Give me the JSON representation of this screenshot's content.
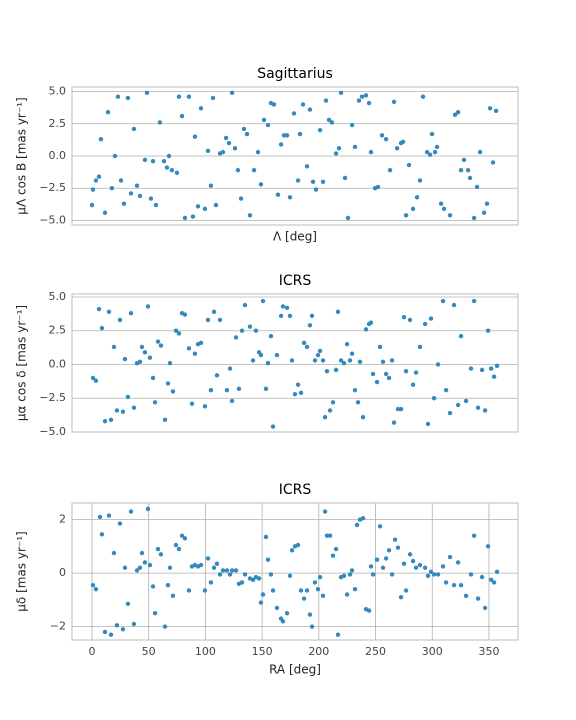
{
  "chart_data": [
    {
      "type": "scatter",
      "title": "Sagittarius",
      "xlabel": "Λ [deg]",
      "ylabel": "μΛ cos B [mas yr⁻¹]",
      "color": "#348abd",
      "grid": true,
      "xlim": [
        -17.6,
        375.6
      ],
      "ylim": [
        -5.35,
        5.35
      ],
      "yticks": [
        {
          "value": -5,
          "label": "−5.0"
        },
        {
          "value": -2.5,
          "label": "−2.5"
        },
        {
          "value": 0,
          "label": "0.0"
        },
        {
          "value": 2.5,
          "label": "2.5"
        },
        {
          "value": 5,
          "label": "5.0"
        }
      ],
      "x": [
        0,
        0.9,
        3.5,
        6.2,
        7.9,
        11.5,
        14.1,
        17.6,
        20.3,
        22.9,
        25.6,
        28.2,
        31.7,
        34.4,
        37,
        39.7,
        42.3,
        46.7,
        48.5,
        52,
        53.8,
        56.4,
        59.9,
        63.5,
        66.1,
        67.9,
        70.5,
        74.9,
        76.7,
        79.4,
        82,
        85.5,
        89,
        90.8,
        93.5,
        96.1,
        99.6,
        102.3,
        104.9,
        106.7,
        109.3,
        112.9,
        115.5,
        118.2,
        120.8,
        123.5,
        126.1,
        128.7,
        131.4,
        134,
        136.7,
        139.3,
        142.9,
        146.4,
        149,
        151.7,
        155.2,
        157.8,
        160.5,
        164,
        166.7,
        169.3,
        172,
        174.6,
        178.1,
        181.7,
        183.4,
        186.1,
        189.6,
        192.2,
        194.9,
        197.5,
        201.1,
        203.7,
        206.3,
        209,
        211.6,
        215.2,
        217.8,
        219.6,
        223.1,
        225.7,
        229.3,
        231.9,
        235.4,
        238.1,
        241.6,
        244.3,
        246,
        249.6,
        252.2,
        255.7,
        259.3,
        262.8,
        266.3,
        269,
        272.5,
        274.3,
        276.9,
        279.5,
        283.1,
        286.6,
        289.2,
        291.9,
        295.4,
        298.1,
        299.8,
        302.5,
        304.2,
        307.8,
        310.4,
        315.7,
        320.1,
        322.8,
        325.4,
        328,
        331.6,
        333.3,
        336.9,
        339.5,
        342.2,
        345.7,
        348.3,
        351,
        353.6,
        356.3
      ],
      "y": [
        -3.8,
        -2.6,
        -1.9,
        -1.6,
        1.3,
        -4.4,
        3.4,
        -2.5,
        0,
        4.6,
        -1.9,
        -3.7,
        4.5,
        -2.9,
        2.1,
        -2.3,
        -3.1,
        -0.3,
        4.9,
        -3.3,
        -0.4,
        -3.8,
        2.6,
        -0.4,
        -0.9,
        0,
        -1.1,
        -1.3,
        4.6,
        3.1,
        -4.8,
        4.6,
        -4.7,
        1.5,
        -3.9,
        3.7,
        -4.1,
        0.4,
        -2.3,
        4.5,
        -3.8,
        0.2,
        0.3,
        1.4,
        1.0,
        4.9,
        0.6,
        -1.1,
        -3.3,
        2.1,
        1.7,
        -4.6,
        -1.1,
        0.3,
        -2.2,
        2.8,
        2.4,
        4.1,
        4.0,
        -3.0,
        0.9,
        1.6,
        1.6,
        -3.2,
        3.3,
        -1.9,
        1.7,
        4.0,
        -0.8,
        3.6,
        -2.0,
        -2.6,
        2.0,
        -2.0,
        4.3,
        2.8,
        2.6,
        0.2,
        0.6,
        4.9,
        -1.7,
        -4.8,
        2.4,
        0.7,
        4.3,
        4.6,
        4.7,
        4.1,
        0.3,
        -2.5,
        -2.4,
        1.6,
        1.3,
        -1.1,
        4.2,
        0.6,
        1.0,
        1.1,
        -4.6,
        -0.7,
        -4.1,
        -3.2,
        -1.9,
        4.6,
        0.3,
        0.1,
        1.7,
        0.3,
        0.7,
        -3.7,
        -4.1,
        -4.6,
        3.2,
        3.4,
        -1.1,
        -0.3,
        -1.1,
        -1.7,
        -4.8,
        -2.4,
        0.3,
        -4.4,
        -3.7,
        3.7,
        -0.5,
        3.5
      ]
    },
    {
      "type": "scatter",
      "title": "ICRS",
      "ylabel": "μα cos δ [mas yr⁻¹]",
      "color": "#348abd",
      "grid": true,
      "xlim": [
        -17.6,
        375.6
      ],
      "ylim": [
        -5.0,
        5.22
      ],
      "yticks": [
        {
          "value": -5,
          "label": "−5.0"
        },
        {
          "value": -2.5,
          "label": "−2.5"
        },
        {
          "value": 0,
          "label": "0.0"
        },
        {
          "value": 2.5,
          "label": "2.5"
        },
        {
          "value": 5,
          "label": "5.0"
        }
      ],
      "x": [
        0.9,
        3.5,
        6.2,
        8.8,
        11.5,
        15,
        16.8,
        19.4,
        22,
        24.7,
        27.3,
        29.1,
        31.7,
        34.4,
        37,
        39.7,
        42.3,
        44.1,
        46.7,
        49.4,
        51.1,
        53.8,
        55.6,
        58.2,
        60.8,
        64.4,
        67,
        68.8,
        71.4,
        74.1,
        76.7,
        79.4,
        82,
        85.5,
        88.2,
        90.8,
        93.5,
        96.1,
        99.6,
        102.3,
        104.9,
        107.6,
        110.2,
        112.9,
        119,
        121.7,
        123.5,
        127,
        129.6,
        132.3,
        134.9,
        139.3,
        142,
        144.6,
        147.3,
        149,
        150.8,
        153.4,
        155.2,
        157.8,
        159.6,
        163.1,
        166.7,
        168.4,
        172,
        174.6,
        176.4,
        179,
        181.7,
        184.3,
        187,
        189.6,
        192.2,
        194,
        196.6,
        199.3,
        201.1,
        203.7,
        205.5,
        207.2,
        209.9,
        212.5,
        215.2,
        216.9,
        219.6,
        222.2,
        224.9,
        227.5,
        229.3,
        231.9,
        234.6,
        236.3,
        239,
        241.6,
        244.3,
        246,
        247.8,
        251.3,
        254,
        256.6,
        259.3,
        261.9,
        264.6,
        266.3,
        269.8,
        272.5,
        275.1,
        276.9,
        280.4,
        283.1,
        285.7,
        289.2,
        293.7,
        296.3,
        298.9,
        301.6,
        305.1,
        309.5,
        312.2,
        315.7,
        319.2,
        322.8,
        325.4,
        329.8,
        334.2,
        336.9,
        340.4,
        343.9,
        346.6,
        349.2,
        351.9,
        354.5,
        357.1
      ],
      "y": [
        -1.0,
        -1.2,
        4.1,
        2.7,
        -4.2,
        3.9,
        -4.1,
        1.3,
        -3.4,
        3.3,
        -3.5,
        0.4,
        -2.4,
        3.8,
        -3.2,
        0.1,
        0.2,
        1.3,
        0.9,
        4.3,
        0.5,
        -1.0,
        -2.8,
        1.7,
        1.4,
        -4.1,
        -1.4,
        0.1,
        -2.0,
        2.5,
        2.3,
        3.8,
        3.7,
        1.2,
        -2.9,
        0.8,
        1.5,
        1.6,
        -3.1,
        3.3,
        -1.9,
        3.9,
        -0.8,
        3.3,
        -1.9,
        -0.3,
        -2.7,
        2.0,
        -1.8,
        2.5,
        4.4,
        2.8,
        0.3,
        2.5,
        0.9,
        0.7,
        4.7,
        -1.8,
        0.1,
        2.1,
        -4.6,
        0.7,
        3.6,
        4.3,
        4.2,
        3.6,
        0.3,
        -2.2,
        -1.5,
        -2.1,
        1.6,
        1.3,
        2.9,
        3.6,
        0.3,
        0.7,
        1.0,
        0.3,
        -3.9,
        -0.5,
        -3.4,
        -2.8,
        -0.4,
        3.9,
        0.3,
        0.1,
        1.5,
        0.3,
        0.8,
        -1.9,
        -2.8,
        0.2,
        -3.9,
        2.6,
        3.0,
        3.1,
        -0.7,
        -1.3,
        1.3,
        0.2,
        -0.7,
        -1.0,
        0.3,
        -4.3,
        -3.3,
        -3.3,
        3.5,
        -0.5,
        3.3,
        -1.5,
        -0.6,
        1.3,
        3.0,
        -4.4,
        3.4,
        -2.5,
        0.0,
        4.7,
        -1.9,
        -3.6,
        4.4,
        -3.0,
        2.1,
        -2.7,
        -0.3,
        4.7,
        -3.2,
        -0.4,
        -3.4,
        2.5,
        -0.3,
        -0.9,
        -0.1
      ]
    },
    {
      "type": "scatter",
      "title": "ICRS",
      "xlabel": "RA [deg]",
      "ylabel": "μδ [mas yr⁻¹]",
      "color": "#348abd",
      "grid": true,
      "xlim": [
        -17.6,
        375.6
      ],
      "ylim": [
        -2.5,
        2.62
      ],
      "xticks": [
        0,
        50,
        100,
        150,
        200,
        250,
        300,
        350
      ],
      "yticks": [
        {
          "value": -2,
          "label": "−2"
        },
        0,
        2
      ],
      "x": [
        0.9,
        3.5,
        7.1,
        8.8,
        11.5,
        15,
        16.8,
        19.4,
        22,
        24.7,
        27.3,
        29.1,
        31.7,
        34.4,
        37,
        39.7,
        42.3,
        44.1,
        46.7,
        49.4,
        51.1,
        53.8,
        55.6,
        58.2,
        60.8,
        64.4,
        67,
        68.8,
        71.4,
        74.1,
        76.7,
        79.4,
        82,
        85.5,
        88.2,
        90.8,
        93.5,
        96.1,
        99.6,
        102.3,
        104.9,
        107.6,
        110.2,
        112.9,
        115.5,
        119,
        121.7,
        123.5,
        127,
        129.6,
        132.3,
        134.9,
        139.3,
        142,
        144.6,
        147.3,
        149,
        150.8,
        153.4,
        155.2,
        157.8,
        159.6,
        163.1,
        166.7,
        168.4,
        172,
        174.6,
        176.4,
        179,
        181.7,
        184.3,
        187,
        189.6,
        192.2,
        194,
        196.6,
        199.3,
        201.1,
        203.7,
        205.5,
        207.2,
        209.9,
        212.5,
        215.2,
        216.9,
        219.6,
        222.2,
        224.9,
        227.5,
        229.3,
        231.9,
        233.7,
        236.3,
        239,
        241.6,
        244.3,
        246,
        247.8,
        251.3,
        254,
        256.6,
        259.3,
        261.9,
        264.6,
        267.2,
        269.8,
        272.5,
        275.1,
        276.9,
        280.4,
        283.1,
        285.7,
        289.2,
        293.7,
        296.3,
        298.9,
        301.6,
        305.1,
        309.5,
        312.2,
        315.7,
        319.2,
        322.8,
        325.4,
        329.8,
        334.2,
        336.9,
        340.4,
        343.9,
        346.6,
        349.2,
        351.9,
        354.5,
        357.1
      ],
      "y": [
        -0.45,
        -0.6,
        2.1,
        1.45,
        -2.2,
        2.15,
        -2.3,
        0.75,
        -1.95,
        1.85,
        -2.1,
        0.2,
        -1.15,
        2.3,
        -1.9,
        0.1,
        0.2,
        0.75,
        0.4,
        2.4,
        0.3,
        -0.5,
        -1.5,
        0.9,
        0.7,
        -2.0,
        -0.45,
        0.2,
        -0.85,
        1.05,
        0.9,
        1.4,
        1.3,
        -0.65,
        0.25,
        0.3,
        0.25,
        0.3,
        -0.65,
        0.55,
        -0.35,
        0.2,
        0.35,
        -0.05,
        0.1,
        0.1,
        -0.05,
        0.1,
        0.1,
        -0.4,
        -0.35,
        -0.05,
        -0.2,
        -0.25,
        -0.15,
        -0.2,
        -1.1,
        -0.8,
        1.35,
        0.5,
        -0.05,
        -0.65,
        -1.3,
        -1.7,
        -1.8,
        -1.5,
        -0.1,
        0.85,
        1.0,
        1.05,
        -0.65,
        -0.95,
        -0.65,
        -1.55,
        -2.0,
        -0.35,
        -0.6,
        -0.15,
        -0.85,
        2.3,
        1.4,
        1.4,
        0.65,
        0.9,
        -2.3,
        -0.15,
        -0.1,
        -0.8,
        -0.05,
        0.1,
        -0.6,
        1.8,
        2.0,
        2.05,
        -1.35,
        -1.4,
        0.25,
        -0.05,
        0.5,
        1.75,
        0.2,
        0.55,
        0.85,
        -0.05,
        1.25,
        0.95,
        -0.9,
        0.35,
        -0.65,
        0.7,
        0.45,
        0.2,
        0.3,
        0.2,
        -0.1,
        0.05,
        -0.05,
        -0.05,
        0.25,
        -0.35,
        0.6,
        -0.45,
        0.4,
        -0.45,
        -0.85,
        -0.05,
        1.4,
        -0.95,
        -0.15,
        -1.3,
        1.0,
        -0.25,
        -0.35,
        0.05
      ]
    }
  ]
}
